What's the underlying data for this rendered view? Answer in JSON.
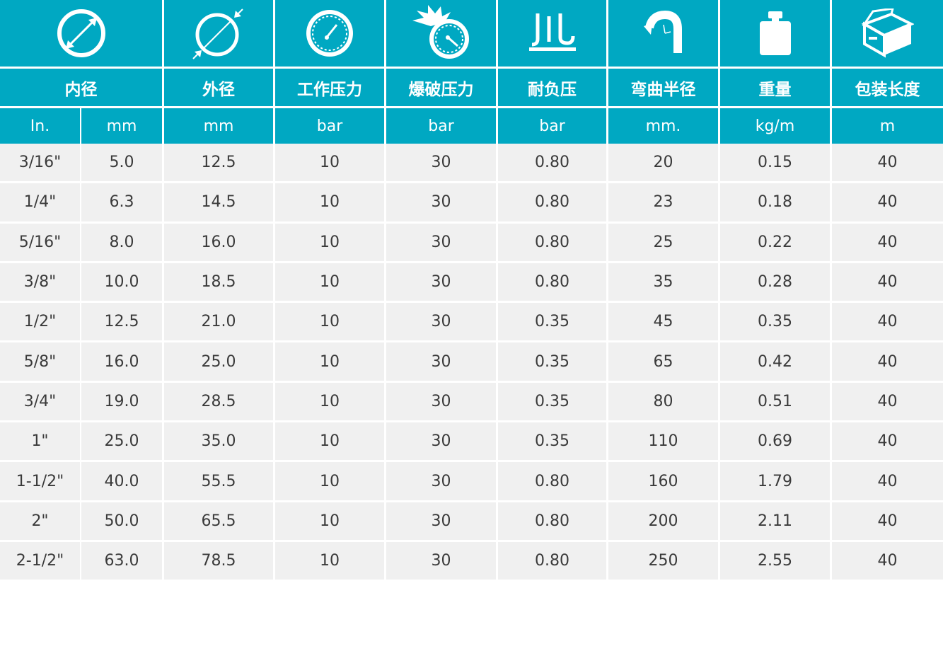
{
  "headers": {
    "inner_diameter": "内径",
    "outer_diameter": "外径",
    "working_pressure": "工作压力",
    "burst_pressure": "爆破压力",
    "vacuum": "耐负压",
    "bend_radius": "弯曲半径",
    "weight": "重量",
    "package_length": "包装长度"
  },
  "units": {
    "in": "In.",
    "mm": "mm",
    "od": "mm",
    "wp": "bar",
    "bp": "bar",
    "vac": "bar",
    "br": "mm.",
    "wt": "kg/m",
    "len": "m"
  },
  "icons": [
    "inner-diameter-icon",
    "outer-diameter-icon",
    "pressure-gauge-icon",
    "burst-gauge-icon",
    "vacuum-icon",
    "bend-radius-icon",
    "weight-icon",
    "package-box-icon"
  ],
  "colors": {
    "header_bg": "#00a8c2",
    "row_bg": "#f0f0f0",
    "text": "#3a3a3a"
  },
  "rows": [
    {
      "in": "3/16\"",
      "mm": "5.0",
      "od": "12.5",
      "wp": "10",
      "bp": "30",
      "vac": "0.80",
      "br": "20",
      "wt": "0.15",
      "len": "40"
    },
    {
      "in": "1/4\"",
      "mm": "6.3",
      "od": "14.5",
      "wp": "10",
      "bp": "30",
      "vac": "0.80",
      "br": "23",
      "wt": "0.18",
      "len": "40"
    },
    {
      "in": "5/16\"",
      "mm": "8.0",
      "od": "16.0",
      "wp": "10",
      "bp": "30",
      "vac": "0.80",
      "br": "25",
      "wt": "0.22",
      "len": "40"
    },
    {
      "in": "3/8\"",
      "mm": "10.0",
      "od": "18.5",
      "wp": "10",
      "bp": "30",
      "vac": "0.80",
      "br": "35",
      "wt": "0.28",
      "len": "40"
    },
    {
      "in": "1/2\"",
      "mm": "12.5",
      "od": "21.0",
      "wp": "10",
      "bp": "30",
      "vac": "0.35",
      "br": "45",
      "wt": "0.35",
      "len": "40"
    },
    {
      "in": "5/8\"",
      "mm": "16.0",
      "od": "25.0",
      "wp": "10",
      "bp": "30",
      "vac": "0.35",
      "br": "65",
      "wt": "0.42",
      "len": "40"
    },
    {
      "in": "3/4\"",
      "mm": "19.0",
      "od": "28.5",
      "wp": "10",
      "bp": "30",
      "vac": "0.35",
      "br": "80",
      "wt": "0.51",
      "len": "40"
    },
    {
      "in": "1\"",
      "mm": "25.0",
      "od": "35.0",
      "wp": "10",
      "bp": "30",
      "vac": "0.35",
      "br": "110",
      "wt": "0.69",
      "len": "40"
    },
    {
      "in": "1-1/2\"",
      "mm": "40.0",
      "od": "55.5",
      "wp": "10",
      "bp": "30",
      "vac": "0.80",
      "br": "160",
      "wt": "1.79",
      "len": "40"
    },
    {
      "in": "2\"",
      "mm": "50.0",
      "od": "65.5",
      "wp": "10",
      "bp": "30",
      "vac": "0.80",
      "br": "200",
      "wt": "2.11",
      "len": "40"
    },
    {
      "in": "2-1/2\"",
      "mm": "63.0",
      "od": "78.5",
      "wp": "10",
      "bp": "30",
      "vac": "0.80",
      "br": "250",
      "wt": "2.55",
      "len": "40"
    }
  ]
}
